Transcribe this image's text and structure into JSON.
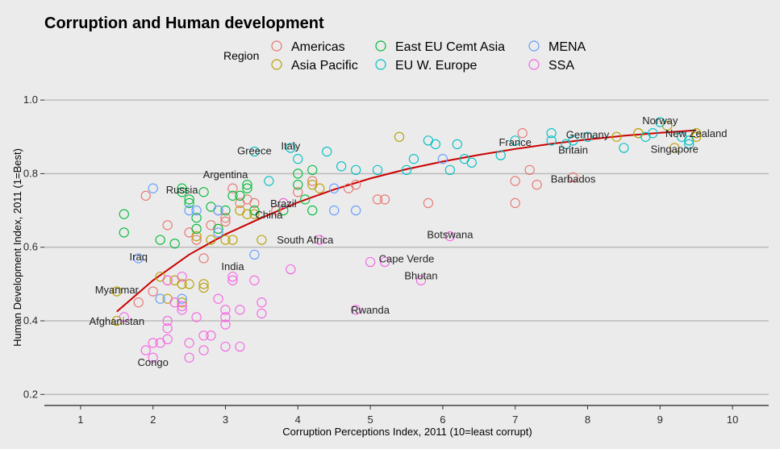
{
  "chart_data": {
    "type": "scatter",
    "title": "Corruption and Human development",
    "xlabel": "Corruption Perceptions Index, 2011 (10=least corrupt)",
    "ylabel": "Human Development Index, 2011 (1=Best)",
    "xlim": [
      0.5,
      10.5
    ],
    "ylim": [
      0.17,
      1.02
    ],
    "xticks": [
      1,
      2,
      3,
      4,
      5,
      6,
      7,
      8,
      9,
      10
    ],
    "yticks": [
      0.2,
      0.4,
      0.6,
      0.8,
      1.0
    ],
    "grid": "horizontal",
    "legend": {
      "title": "Region",
      "placement": "top"
    },
    "series": [
      {
        "name": "Americas",
        "color": "#e8746d",
        "points": [
          [
            1.8,
            0.45
          ],
          [
            2.0,
            0.48
          ],
          [
            2.2,
            0.66
          ],
          [
            2.5,
            0.64
          ],
          [
            2.6,
            0.62
          ],
          [
            2.7,
            0.57
          ],
          [
            2.8,
            0.66
          ],
          [
            2.9,
            0.7
          ],
          [
            3.0,
            0.68
          ],
          [
            3.0,
            0.67
          ],
          [
            3.1,
            0.76
          ],
          [
            3.2,
            0.72
          ],
          [
            3.3,
            0.73
          ],
          [
            3.4,
            0.72
          ],
          [
            3.7,
            0.7
          ],
          [
            3.8,
            0.72
          ],
          [
            4.0,
            0.75
          ],
          [
            4.2,
            0.78
          ],
          [
            4.8,
            0.77
          ],
          [
            4.7,
            0.76
          ],
          [
            5.1,
            0.73
          ],
          [
            5.2,
            0.73
          ],
          [
            5.8,
            0.72
          ],
          [
            7.0,
            0.78
          ],
          [
            7.0,
            0.72
          ],
          [
            7.1,
            0.91
          ],
          [
            7.2,
            0.81
          ],
          [
            7.3,
            0.77
          ],
          [
            7.8,
            0.79
          ],
          [
            1.9,
            0.74
          ],
          [
            2.2,
            0.51
          ]
        ]
      },
      {
        "name": "Asia Pacific",
        "color": "#b79f00",
        "points": [
          [
            1.5,
            0.48
          ],
          [
            1.5,
            0.4
          ],
          [
            2.1,
            0.52
          ],
          [
            2.2,
            0.46
          ],
          [
            2.3,
            0.51
          ],
          [
            2.4,
            0.5
          ],
          [
            2.4,
            0.45
          ],
          [
            2.5,
            0.5
          ],
          [
            2.6,
            0.63
          ],
          [
            2.7,
            0.5
          ],
          [
            2.7,
            0.49
          ],
          [
            2.8,
            0.62
          ],
          [
            2.9,
            0.65
          ],
          [
            3.0,
            0.62
          ],
          [
            3.1,
            0.62
          ],
          [
            3.2,
            0.7
          ],
          [
            3.3,
            0.69
          ],
          [
            3.4,
            0.69
          ],
          [
            3.5,
            0.62
          ],
          [
            4.2,
            0.77
          ],
          [
            4.3,
            0.76
          ],
          [
            5.4,
            0.9
          ],
          [
            8.4,
            0.9
          ],
          [
            8.7,
            0.91
          ],
          [
            8.7,
            0.91
          ],
          [
            9.1,
            0.93
          ],
          [
            9.2,
            0.87
          ],
          [
            9.5,
            0.91
          ],
          [
            9.5,
            0.9
          ]
        ]
      },
      {
        "name": "East EU Cemt Asia",
        "color": "#00ba38",
        "points": [
          [
            1.6,
            0.69
          ],
          [
            1.6,
            0.64
          ],
          [
            2.1,
            0.62
          ],
          [
            2.3,
            0.61
          ],
          [
            2.4,
            0.75
          ],
          [
            2.4,
            0.76
          ],
          [
            2.5,
            0.72
          ],
          [
            2.6,
            0.68
          ],
          [
            2.6,
            0.65
          ],
          [
            2.7,
            0.75
          ],
          [
            2.9,
            0.65
          ],
          [
            3.0,
            0.7
          ],
          [
            3.1,
            0.74
          ],
          [
            3.2,
            0.74
          ],
          [
            3.3,
            0.77
          ],
          [
            3.3,
            0.76
          ],
          [
            3.4,
            0.7
          ],
          [
            4.0,
            0.8
          ],
          [
            4.0,
            0.77
          ],
          [
            4.1,
            0.73
          ],
          [
            4.2,
            0.7
          ],
          [
            4.2,
            0.81
          ],
          [
            3.8,
            0.7
          ],
          [
            2.5,
            0.73
          ],
          [
            2.8,
            0.71
          ]
        ]
      },
      {
        "name": "EU W. Europe",
        "color": "#00bfc4",
        "points": [
          [
            3.4,
            0.86
          ],
          [
            3.6,
            0.78
          ],
          [
            3.9,
            0.87
          ],
          [
            4.0,
            0.84
          ],
          [
            4.4,
            0.86
          ],
          [
            4.6,
            0.82
          ],
          [
            4.8,
            0.81
          ],
          [
            5.1,
            0.81
          ],
          [
            5.5,
            0.81
          ],
          [
            5.6,
            0.84
          ],
          [
            5.8,
            0.89
          ],
          [
            5.9,
            0.88
          ],
          [
            6.1,
            0.81
          ],
          [
            6.2,
            0.88
          ],
          [
            6.3,
            0.84
          ],
          [
            6.4,
            0.83
          ],
          [
            6.8,
            0.85
          ],
          [
            7.0,
            0.89
          ],
          [
            7.5,
            0.91
          ],
          [
            7.5,
            0.89
          ],
          [
            7.7,
            0.88
          ],
          [
            7.8,
            0.89
          ],
          [
            8.0,
            0.9
          ],
          [
            8.5,
            0.87
          ],
          [
            8.8,
            0.9
          ],
          [
            8.9,
            0.91
          ],
          [
            9.0,
            0.94
          ],
          [
            9.3,
            0.9
          ],
          [
            9.4,
            0.89
          ],
          [
            9.4,
            0.88
          ]
        ]
      },
      {
        "name": "MENA",
        "color": "#619cff",
        "points": [
          [
            1.8,
            0.57
          ],
          [
            2.0,
            0.76
          ],
          [
            2.1,
            0.46
          ],
          [
            2.4,
            0.46
          ],
          [
            2.5,
            0.7
          ],
          [
            2.6,
            0.7
          ],
          [
            2.9,
            0.7
          ],
          [
            2.9,
            0.64
          ],
          [
            3.4,
            0.58
          ],
          [
            4.5,
            0.7
          ],
          [
            4.8,
            0.7
          ],
          [
            4.5,
            0.76
          ],
          [
            6.0,
            0.84
          ]
        ]
      },
      {
        "name": "SSA",
        "color": "#f564e3",
        "points": [
          [
            1.6,
            0.41
          ],
          [
            1.9,
            0.32
          ],
          [
            2.0,
            0.34
          ],
          [
            2.0,
            0.3
          ],
          [
            2.1,
            0.34
          ],
          [
            2.2,
            0.35
          ],
          [
            2.2,
            0.4
          ],
          [
            2.2,
            0.38
          ],
          [
            2.2,
            0.51
          ],
          [
            2.3,
            0.45
          ],
          [
            2.4,
            0.43
          ],
          [
            2.4,
            0.44
          ],
          [
            2.5,
            0.3
          ],
          [
            2.5,
            0.34
          ],
          [
            2.6,
            0.41
          ],
          [
            2.7,
            0.32
          ],
          [
            2.7,
            0.36
          ],
          [
            2.8,
            0.36
          ],
          [
            2.9,
            0.46
          ],
          [
            3.0,
            0.33
          ],
          [
            3.0,
            0.41
          ],
          [
            3.0,
            0.39
          ],
          [
            3.0,
            0.43
          ],
          [
            3.1,
            0.51
          ],
          [
            3.1,
            0.52
          ],
          [
            3.2,
            0.43
          ],
          [
            3.2,
            0.33
          ],
          [
            3.4,
            0.51
          ],
          [
            3.5,
            0.45
          ],
          [
            3.5,
            0.42
          ],
          [
            3.9,
            0.54
          ],
          [
            4.3,
            0.62
          ],
          [
            4.8,
            0.43
          ],
          [
            5.0,
            0.56
          ],
          [
            5.2,
            0.56
          ],
          [
            5.7,
            0.51
          ],
          [
            6.1,
            0.63
          ],
          [
            3.8,
            0.72
          ],
          [
            2.4,
            0.52
          ]
        ]
      }
    ],
    "trendline": {
      "color": "#cc0000",
      "points": [
        [
          1.5,
          0.425
        ],
        [
          2.0,
          0.51
        ],
        [
          2.5,
          0.58
        ],
        [
          3.0,
          0.635
        ],
        [
          3.5,
          0.68
        ],
        [
          4.0,
          0.722
        ],
        [
          4.5,
          0.757
        ],
        [
          5.0,
          0.787
        ],
        [
          5.5,
          0.812
        ],
        [
          6.0,
          0.833
        ],
        [
          6.5,
          0.851
        ],
        [
          7.0,
          0.867
        ],
        [
          7.5,
          0.881
        ],
        [
          8.0,
          0.893
        ],
        [
          8.5,
          0.903
        ],
        [
          9.0,
          0.911
        ],
        [
          9.5,
          0.918
        ]
      ]
    },
    "annotations": [
      {
        "text": "Norway",
        "x": 9.0,
        "y": 0.943
      },
      {
        "text": "New Zealand",
        "x": 9.5,
        "y": 0.908
      },
      {
        "text": "Germany",
        "x": 8.0,
        "y": 0.905
      },
      {
        "text": "France",
        "x": 7.0,
        "y": 0.884
      },
      {
        "text": "Britain",
        "x": 7.8,
        "y": 0.863
      },
      {
        "text": "Singapore",
        "x": 9.2,
        "y": 0.866
      },
      {
        "text": "Barbados",
        "x": 7.8,
        "y": 0.785
      },
      {
        "text": "Italy",
        "x": 3.9,
        "y": 0.874
      },
      {
        "text": "Greece",
        "x": 3.4,
        "y": 0.861
      },
      {
        "text": "Argentina",
        "x": 3.0,
        "y": 0.797
      },
      {
        "text": "Russia",
        "x": 2.4,
        "y": 0.755
      },
      {
        "text": "Brazil",
        "x": 3.8,
        "y": 0.718
      },
      {
        "text": "China",
        "x": 3.6,
        "y": 0.687
      },
      {
        "text": "South Africa",
        "x": 4.1,
        "y": 0.619
      },
      {
        "text": "Botswana",
        "x": 6.1,
        "y": 0.633
      },
      {
        "text": "Iraq",
        "x": 1.8,
        "y": 0.573
      },
      {
        "text": "India",
        "x": 3.1,
        "y": 0.547
      },
      {
        "text": "Cape Verde",
        "x": 5.5,
        "y": 0.568
      },
      {
        "text": "Bhutan",
        "x": 5.7,
        "y": 0.522
      },
      {
        "text": "Myanmar",
        "x": 1.5,
        "y": 0.483
      },
      {
        "text": "Rwanda",
        "x": 5.0,
        "y": 0.429
      },
      {
        "text": "Afghanistan",
        "x": 1.5,
        "y": 0.398
      },
      {
        "text": "Congo",
        "x": 2.0,
        "y": 0.286
      }
    ]
  }
}
